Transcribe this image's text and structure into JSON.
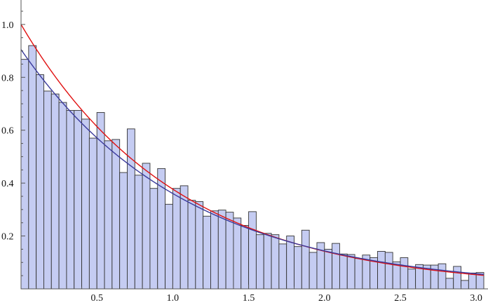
{
  "chart_data": {
    "type": "bar",
    "title": "",
    "xlabel": "",
    "ylabel": "",
    "xlim": [
      0,
      3.05
    ],
    "ylim": [
      0,
      1.05
    ],
    "bin_width": 0.05,
    "grid": false,
    "x_ticks": [
      {
        "value": 0.5,
        "label": "0.5"
      },
      {
        "value": 1.0,
        "label": "1.0"
      },
      {
        "value": 1.5,
        "label": "1.5"
      },
      {
        "value": 2.0,
        "label": "2.0"
      },
      {
        "value": 2.5,
        "label": "2.5"
      },
      {
        "value": 3.0,
        "label": "3.0"
      }
    ],
    "y_ticks": [
      {
        "value": 0.2,
        "label": "0.2"
      },
      {
        "value": 0.4,
        "label": "0.4"
      },
      {
        "value": 0.6,
        "label": "0.6"
      },
      {
        "value": 0.8,
        "label": "0.8"
      },
      {
        "value": 1.0,
        "label": "1.0"
      }
    ],
    "histogram": {
      "fill": "#c5ccf2",
      "stroke": "#333333",
      "values": [
        0.868,
        0.92,
        0.81,
        0.748,
        0.737,
        0.705,
        0.675,
        0.675,
        0.642,
        0.57,
        0.667,
        0.56,
        0.565,
        0.44,
        0.605,
        0.43,
        0.475,
        0.38,
        0.455,
        0.32,
        0.38,
        0.39,
        0.335,
        0.33,
        0.275,
        0.295,
        0.298,
        0.29,
        0.268,
        0.24,
        0.292,
        0.205,
        0.21,
        0.205,
        0.17,
        0.2,
        0.16,
        0.222,
        0.138,
        0.175,
        0.15,
        0.172,
        0.132,
        0.13,
        0.115,
        0.128,
        0.118,
        0.142,
        0.138,
        0.102,
        0.118,
        0.075,
        0.092,
        0.09,
        0.09,
        0.095,
        0.04,
        0.085,
        0.032,
        0.06,
        0.062
      ]
    },
    "series": [
      {
        "type": "line",
        "color": "#e01010",
        "function": "exponential",
        "amplitude": 1.0,
        "rate": 0.975
      },
      {
        "type": "line",
        "color": "#3a3a9c",
        "function": "exponential",
        "amplitude": 0.905,
        "rate": 0.92
      }
    ]
  }
}
